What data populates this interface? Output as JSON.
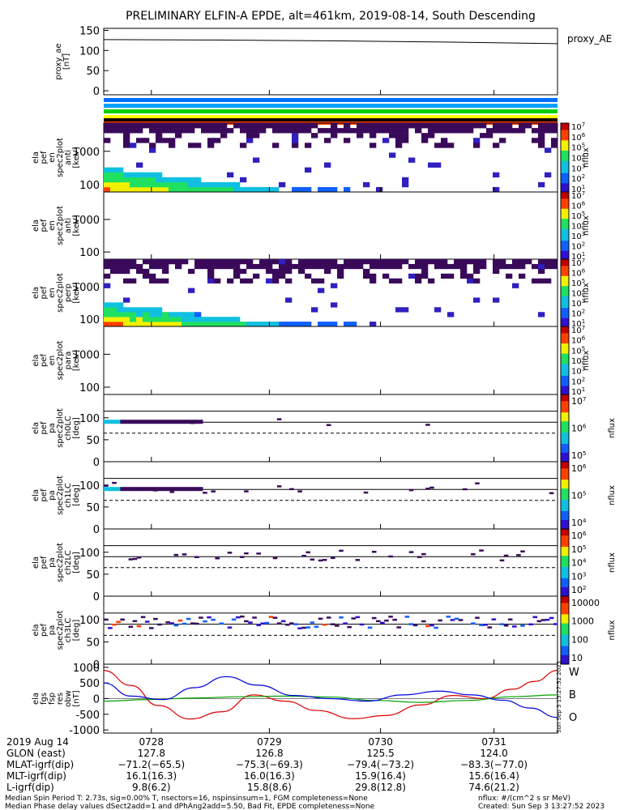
{
  "title": "PRELIMINARY ELFIN-A EPDE, alt=461km, 2019-08-14, South Descending",
  "colors": {
    "electrojet_bars": [
      "#0070ff",
      "#00a0ff",
      "#00d000",
      "#ffff00",
      "#ff4000"
    ],
    "w": "#e00000",
    "b": "#00a000",
    "o": "#0000e0"
  },
  "chart_data": [
    {
      "type": "line",
      "id": "proxy_ae",
      "ylabel_lines": [
        "proxy_ae",
        "[nT]"
      ],
      "legend": "proxy_AE",
      "yticks": [
        0,
        50,
        100,
        150
      ],
      "ylim": [
        -10,
        155
      ],
      "x": [
        0,
        0.25,
        0.5,
        0.75,
        1.0
      ],
      "values": [
        127,
        126,
        124,
        121,
        117
      ]
    },
    {
      "type": "heatmap",
      "id": "en_anti",
      "ylabel_lines": [
        "ela",
        "pef",
        "en",
        "spec2plot",
        "anti",
        "[keV]"
      ],
      "ytick_labels": [
        "100",
        "1000"
      ],
      "scale": "log",
      "colorbar_label": "nflux",
      "filled": true
    },
    {
      "type": "heatmap",
      "id": "en_perp",
      "ylabel_lines": [
        "ela",
        "pef",
        "en",
        "spec2plot",
        "anti",
        "[keV]"
      ],
      "ytick_labels": [
        "100",
        "1000"
      ],
      "scale": "log",
      "colorbar_label": "nflux",
      "filled": false
    },
    {
      "type": "heatmap",
      "id": "en_para",
      "ylabel_lines": [
        "ela",
        "pef",
        "en",
        "spec2plot",
        "perp",
        "[keV]"
      ],
      "ytick_labels": [
        "100",
        "1000"
      ],
      "scale": "log",
      "colorbar_label": "nflux",
      "filled": true
    },
    {
      "type": "heatmap",
      "id": "en_para2",
      "ylabel_lines": [
        "ela",
        "pef",
        "en",
        "spec2plot",
        "para",
        "[keV]"
      ],
      "ytick_labels": [
        "100",
        "1000"
      ],
      "scale": "log",
      "colorbar_label": "nflux",
      "filled": false
    },
    {
      "type": "heatmap",
      "id": "pa_ch0",
      "ylabel_lines": [
        "ela",
        "pef",
        "pa",
        "spec2plot",
        "ch0LC",
        "[deg]"
      ],
      "yticks": [
        0,
        50,
        100
      ],
      "ylim": [
        0,
        180
      ],
      "lc_lines": [
        115,
        90,
        65
      ],
      "colorbar_ticks": [
        "10^5",
        "10^6",
        "10^7"
      ],
      "colorbar_label": "nflux"
    },
    {
      "type": "heatmap",
      "id": "pa_ch1",
      "ylabel_lines": [
        "ela",
        "pef",
        "pa",
        "spec2plot",
        "ch1LC",
        "[deg]"
      ],
      "yticks": [
        0,
        50,
        100
      ],
      "ylim": [
        0,
        180
      ],
      "lc_lines": [
        115,
        90,
        65
      ],
      "colorbar_ticks": [
        "10^4",
        "10^5",
        "10^6"
      ],
      "colorbar_label": "nflux"
    },
    {
      "type": "heatmap",
      "id": "pa_ch2",
      "ylabel_lines": [
        "ela",
        "pef",
        "pa",
        "spec2plot",
        "ch2LC",
        "[deg]"
      ],
      "yticks": [
        0,
        50,
        100
      ],
      "ylim": [
        0,
        180
      ],
      "lc_lines": [
        115,
        90,
        65
      ],
      "colorbar_ticks": [
        "10^2",
        "10^3",
        "10^4",
        "10^5",
        "10^6"
      ],
      "colorbar_label": "nflux"
    },
    {
      "type": "heatmap",
      "id": "pa_ch3",
      "ylabel_lines": [
        "ela",
        "pef",
        "pa",
        "spec2plot",
        "ch3LC",
        "[deg]"
      ],
      "yticks": [
        0,
        50,
        100
      ],
      "ylim": [
        0,
        180
      ],
      "lc_lines": [
        115,
        90,
        65
      ],
      "colorbar_ticks": [
        "10",
        "100",
        "1000",
        "10000"
      ],
      "colorbar_label": "nflux"
    },
    {
      "type": "line",
      "id": "fgs",
      "ylabel_lines": [
        "ela",
        "fgs",
        "fsp",
        "res",
        "obw",
        "[nT]"
      ],
      "yticks": [
        -1000,
        -500,
        0,
        500,
        1000
      ],
      "ylim": [
        -1100,
        1100
      ],
      "series": [
        {
          "name": "W",
          "color": "#e00000",
          "x": [
            0,
            0.06,
            0.12,
            0.19,
            0.26,
            0.33,
            0.4,
            0.47,
            0.55,
            0.62,
            0.7,
            0.77,
            0.84,
            0.9,
            0.95,
            1.0
          ],
          "values": [
            900,
            420,
            -220,
            -650,
            -420,
            120,
            -80,
            -380,
            -640,
            -540,
            -200,
            100,
            0,
            300,
            550,
            900
          ]
        },
        {
          "name": "B",
          "color": "#00a000",
          "x": [
            0,
            0.1,
            0.2,
            0.3,
            0.4,
            0.5,
            0.6,
            0.7,
            0.8,
            0.9,
            1.0
          ],
          "values": [
            -80,
            -30,
            20,
            60,
            80,
            50,
            -60,
            -120,
            -60,
            60,
            120
          ]
        },
        {
          "name": "O",
          "color": "#0000e0",
          "x": [
            0,
            0.06,
            0.13,
            0.2,
            0.27,
            0.34,
            0.42,
            0.5,
            0.58,
            0.66,
            0.74,
            0.81,
            0.88,
            0.94,
            1.0
          ],
          "values": [
            500,
            80,
            -30,
            350,
            700,
            430,
            100,
            0,
            -80,
            120,
            240,
            120,
            -50,
            -300,
            -600
          ]
        }
      ]
    }
  ],
  "xaxis": {
    "row_labels": [
      "2019 Aug 14",
      "GLON (east)",
      "MLAT-igrf(dip)",
      "MLT-igrf(dip)",
      "L-igrf(dip)"
    ],
    "columns": [
      {
        "time": "0728",
        "glon": "127.8",
        "mlat": "−71.2(−65.5)",
        "mlt": "16.1(16.3)",
        "l": "9.8(6.2)"
      },
      {
        "time": "0729",
        "glon": "126.8",
        "mlat": "−75.3(−69.3)",
        "mlt": "16.0(16.3)",
        "l": "15.8(8.6)"
      },
      {
        "time": "0730",
        "glon": "125.5",
        "mlat": "−79.4(−73.2)",
        "mlt": "15.9(16.4)",
        "l": "29.8(12.8)"
      },
      {
        "time": "0731",
        "glon": "124.0",
        "mlat": "−83.3(−77.0)",
        "mlt": "15.6(16.4)",
        "l": "74.6(21.2)"
      }
    ]
  },
  "footer": {
    "line1": "Median Spin Period T: 2.73s, sig=0.00% T, nsectors=16, nspinsinsum=1, FGM completeness=None",
    "line2": "Median Phase delay values dSect2add=1 and dPhAng2add=5.50, Bad Fit, EPDE completeness=None",
    "units": "nflux: #/(cm^2 s sr MeV)",
    "created": "Created: Sun Sep  3 13:27:52 2023",
    "side_stamp": "Sun Sep  3 13:27:52 2023"
  },
  "series_labels": {
    "w": "W",
    "b": "B",
    "o": "O"
  }
}
